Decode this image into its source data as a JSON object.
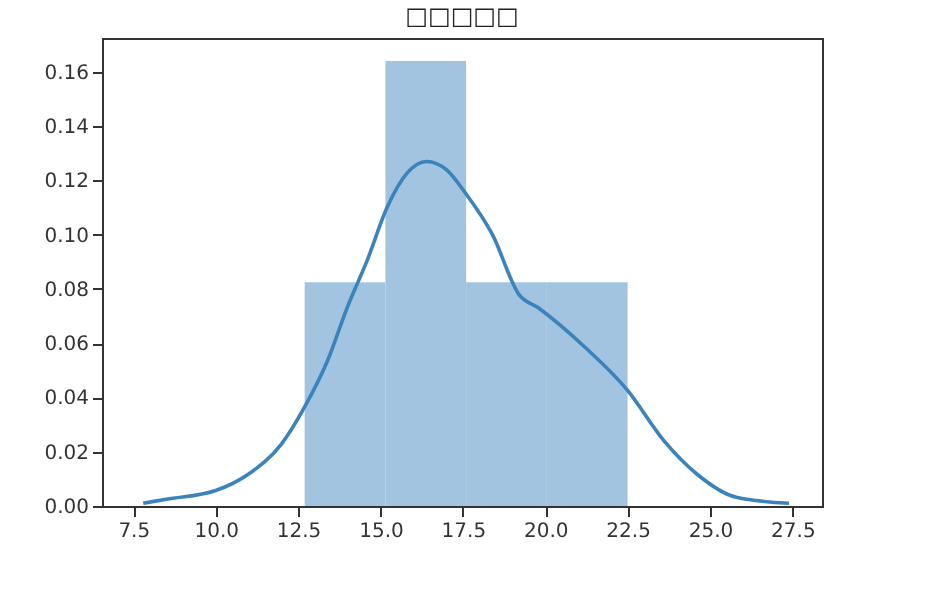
{
  "chart_data": {
    "type": "histogram",
    "title": "□□□□□",
    "xlim": [
      6.55,
      28.4
    ],
    "ylim": [
      0,
      0.1725
    ],
    "xticks": [
      {
        "value": 7.5,
        "label": "7.5"
      },
      {
        "value": 10,
        "label": "10.0"
      },
      {
        "value": 12.5,
        "label": "12.5"
      },
      {
        "value": 15,
        "label": "15.0"
      },
      {
        "value": 17.5,
        "label": "17.5"
      },
      {
        "value": 20,
        "label": "20.0"
      },
      {
        "value": 22.5,
        "label": "22.5"
      },
      {
        "value": 25,
        "label": "25.0"
      },
      {
        "value": 27.5,
        "label": "27.5"
      }
    ],
    "yticks": [
      {
        "value": 0,
        "label": "0.00"
      },
      {
        "value": 0.02,
        "label": "0.02"
      },
      {
        "value": 0.04,
        "label": "0.04"
      },
      {
        "value": 0.06,
        "label": "0.06"
      },
      {
        "value": 0.08,
        "label": "0.08"
      },
      {
        "value": 0.1,
        "label": "0.10"
      },
      {
        "value": 0.12,
        "label": "0.12"
      },
      {
        "value": 0.14,
        "label": "0.14"
      },
      {
        "value": 0.16,
        "label": "0.16"
      }
    ],
    "series": [
      {
        "color": "#a3c4e0",
        "bins": [
          12.7,
          15.15,
          17.6,
          20.05,
          22.5
        ],
        "values": [
          0.0825,
          0.164,
          0.0825,
          0.0825
        ]
      },
      {
        "type": "line",
        "color": "#3a83bb",
        "x": [
          7.8,
          8.5,
          10,
          11,
          12,
          12.7,
          13.4,
          14,
          14.6,
          15.2,
          15.8,
          16.4,
          17,
          17.6,
          18.4,
          19.2,
          19.8,
          21.2,
          22.5,
          23.6,
          24.6,
          25.8,
          27.4
        ],
        "values": [
          0.001,
          0.0025,
          0.0057,
          0.0118,
          0.0229,
          0.0365,
          0.0537,
          0.0734,
          0.0906,
          0.11,
          0.1226,
          0.127,
          0.124,
          0.115,
          0.1,
          0.078,
          0.073,
          0.0586,
          0.0426,
          0.0241,
          0.0118,
          0.0032,
          0.001
        ]
      }
    ]
  }
}
